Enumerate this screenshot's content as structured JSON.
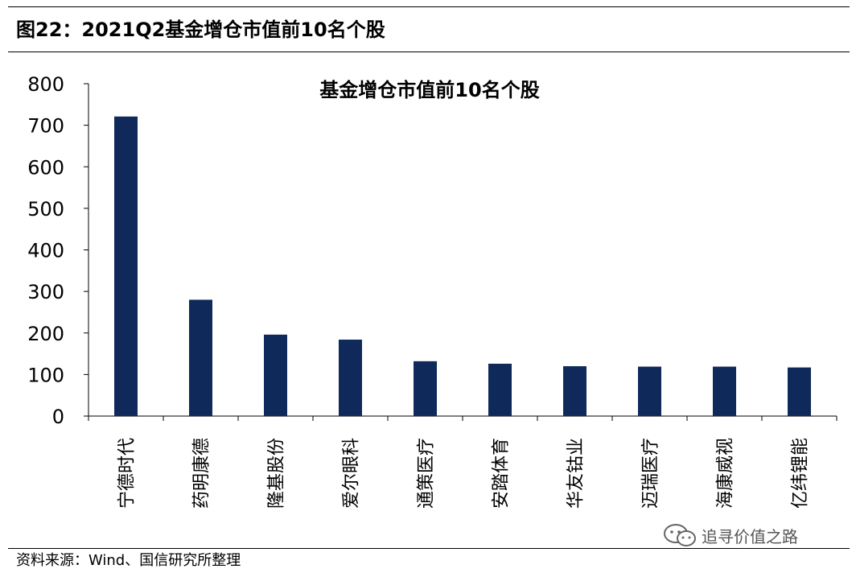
{
  "header": {
    "figure_title": "图22：2021Q2基金增仓市值前10名个股"
  },
  "chart_data": {
    "type": "bar",
    "title": "基金增仓市值前10名个股",
    "xlabel": "",
    "ylabel": "",
    "ylim": [
      0,
      800
    ],
    "yticks": [
      0,
      100,
      200,
      300,
      400,
      500,
      600,
      700,
      800
    ],
    "categories": [
      "宁德时代",
      "药明康德",
      "隆基股份",
      "爱尔眼科",
      "通策医疗",
      "安踏体育",
      "华友钴业",
      "迈瑞医疗",
      "海康威视",
      "亿纬锂能"
    ],
    "values": [
      721,
      280,
      196,
      184,
      132,
      126,
      120,
      119,
      119,
      117
    ],
    "bar_color": "#0f2a5a",
    "grid": false,
    "legend": "none"
  },
  "watermark": {
    "text": "追寻价值之路",
    "icon": "wechat-icon"
  },
  "footer": {
    "source": "资料来源：Wind、国信研究所整理"
  }
}
